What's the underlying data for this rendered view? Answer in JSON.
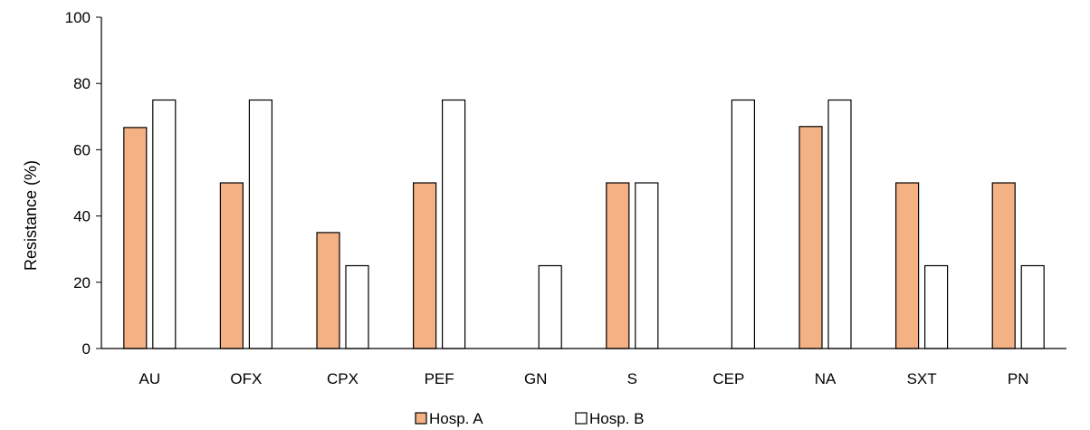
{
  "chart_data": {
    "type": "bar",
    "categories": [
      "AU",
      "OFX",
      "CPX",
      "PEF",
      "GN",
      "S",
      "CEP",
      "NA",
      "SXT",
      "PN"
    ],
    "series": [
      {
        "name": "Hosp. A",
        "values": [
          66.7,
          50,
          35,
          50,
          0,
          50,
          0,
          67,
          50,
          50
        ],
        "color": "#f4b183"
      },
      {
        "name": "Hosp. B",
        "values": [
          75,
          75,
          25,
          75,
          25,
          50,
          75,
          75,
          25,
          25
        ],
        "color": "#ffffff"
      }
    ],
    "title": "",
    "xlabel": "",
    "ylabel": "Resistance (%)",
    "ylim": [
      0,
      100
    ],
    "yticks": [
      0,
      20,
      40,
      60,
      80,
      100
    ],
    "grid": false,
    "legend_position": "bottom"
  }
}
